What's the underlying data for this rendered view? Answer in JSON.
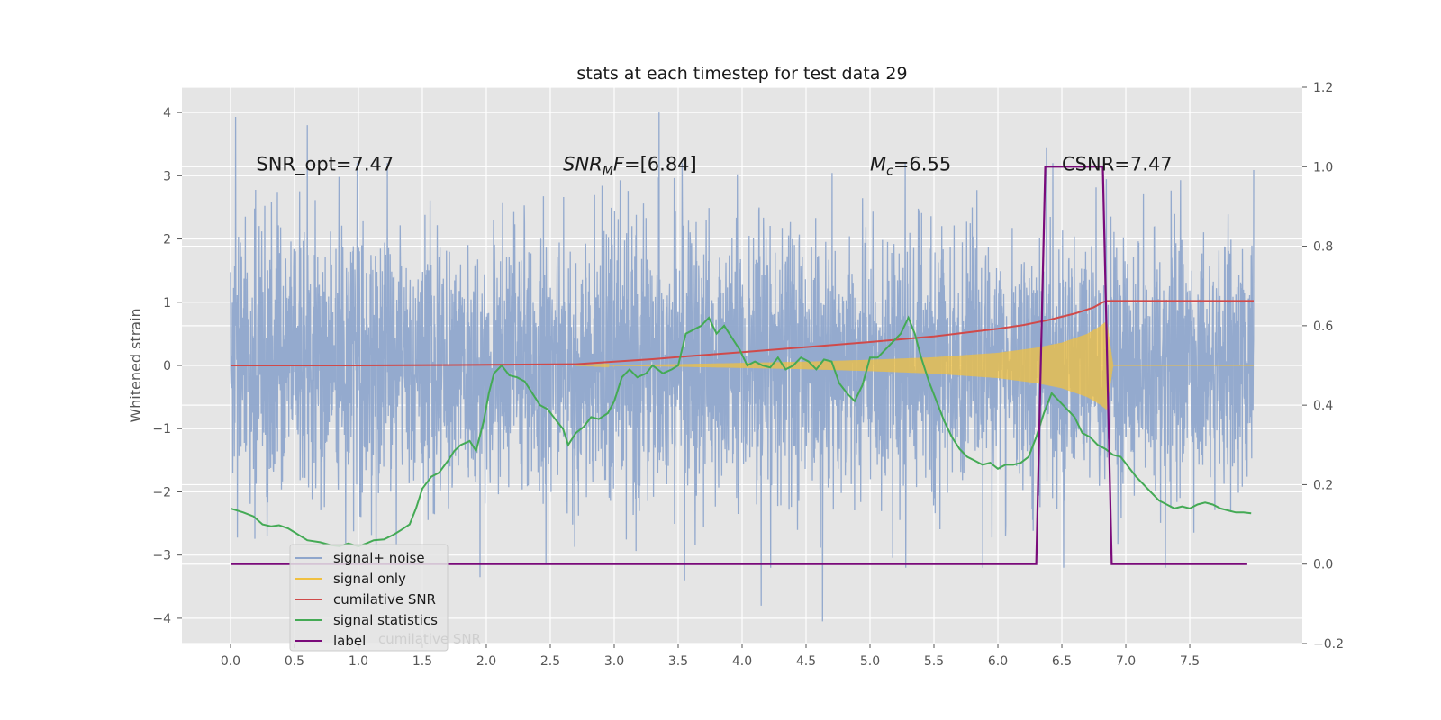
{
  "chart_data": {
    "type": "line",
    "title": "stats at each timestep for test data 29",
    "ylabel": "Whitened strain",
    "xlim": [
      -0.38,
      8.38
    ],
    "ylim": [
      -4.4,
      4.4
    ],
    "y2lim": [
      -0.2,
      1.2
    ],
    "grid": true,
    "legend_placement": "lower-left",
    "x_ticks": [
      0.0,
      0.5,
      1.0,
      1.5,
      2.0,
      2.5,
      3.0,
      3.5,
      4.0,
      4.5,
      5.0,
      5.5,
      6.0,
      6.5,
      7.0,
      7.5
    ],
    "x_tick_labels": [
      "0.0",
      "0.5",
      "1.0",
      "1.5",
      "2.0",
      "2.5",
      "3.0",
      "3.5",
      "4.0",
      "4.5",
      "5.0",
      "5.5",
      "6.0",
      "6.5",
      "7.0",
      "7.5"
    ],
    "y_ticks": [
      -4,
      -3,
      -2,
      -1,
      0,
      1,
      2,
      3,
      4
    ],
    "y_tick_labels": [
      "−4",
      "−3",
      "−2",
      "−1",
      "0",
      "1",
      "2",
      "3",
      "4"
    ],
    "y2_ticks": [
      -0.2,
      0.0,
      0.2,
      0.4,
      0.6,
      0.8,
      1.0,
      1.2
    ],
    "y2_tick_labels": [
      "−0.2",
      "0.0",
      "0.2",
      "0.4",
      "0.6",
      "0.8",
      "1.0",
      "1.2"
    ],
    "annotations": [
      {
        "x": 0.2,
        "y": 3.2,
        "text": "SNR_opt=7.47",
        "italic_prefix": "",
        "subscript": "",
        "suffix": ""
      },
      {
        "x": 2.6,
        "y": 3.2,
        "text": "SNR_MF=[6.84]",
        "italic_prefix": "SNR",
        "subscript": "M",
        "suffix": "F=[6.84]"
      },
      {
        "x": 5.0,
        "y": 3.2,
        "text": "M_c=6.55",
        "italic_prefix": "M",
        "subscript": "c",
        "suffix": "=6.55"
      },
      {
        "x": 6.5,
        "y": 3.2,
        "text": "CSNR=7.47",
        "italic_prefix": "",
        "subscript": "",
        "suffix": ""
      }
    ],
    "legend": [
      {
        "name": "signal+ noise",
        "color": "#8fa6cc"
      },
      {
        "name": "signal only",
        "color": "#f0c040"
      },
      {
        "name": "cumilative SNR",
        "color": "#d04a4a"
      },
      {
        "name": "signal statistics",
        "color": "#44aa55"
      },
      {
        "name": "label",
        "color": "#7a0a7a"
      }
    ],
    "legend_hidden_text": "cumilative SNR",
    "series": [
      {
        "name": "signal+ noise",
        "axis": "left",
        "color": "#8fa6cc",
        "description": "noisy whitened strain, approx. gaussian noise with sigma about 1, t from 0.0 to 8.0",
        "x_range": [
          0.0,
          8.0
        ],
        "noise_sigma": 1.05,
        "peak_values": [
          {
            "x": 0.04,
            "y": 3.93
          },
          {
            "x": 0.6,
            "y": 3.8
          },
          {
            "x": 3.35,
            "y": 4.0
          },
          {
            "x": 4.63,
            "y": -4.05
          },
          {
            "x": 4.15,
            "y": -3.8
          },
          {
            "x": 6.38,
            "y": 3.45
          },
          {
            "x": 3.55,
            "y": -3.4
          },
          {
            "x": 1.95,
            "y": -3.35
          }
        ]
      },
      {
        "name": "signal only",
        "axis": "left",
        "color": "#f0c040",
        "description": "chirp signal, amplitude grows toward merger near t=6.85 then ends",
        "x_range": [
          2.7,
          8.0
        ],
        "envelope": {
          "x": [
            2.7,
            3.5,
            4.0,
            4.5,
            5.0,
            5.5,
            6.0,
            6.3,
            6.5,
            6.7,
            6.8,
            6.85,
            6.9,
            8.0
          ],
          "amp": [
            0.0,
            0.02,
            0.04,
            0.06,
            0.09,
            0.13,
            0.2,
            0.28,
            0.36,
            0.5,
            0.62,
            0.7,
            0.0,
            0.0
          ]
        }
      },
      {
        "name": "cumilative SNR",
        "axis": "left",
        "color": "#d04a4a",
        "x": [
          0.0,
          1.0,
          2.0,
          2.7,
          3.0,
          3.3,
          3.6,
          4.0,
          4.5,
          5.0,
          5.5,
          6.0,
          6.2,
          6.4,
          6.6,
          6.75,
          6.82,
          6.85,
          8.0
        ],
        "values": [
          0.0,
          0.0,
          0.01,
          0.02,
          0.06,
          0.1,
          0.15,
          0.21,
          0.29,
          0.37,
          0.46,
          0.58,
          0.64,
          0.72,
          0.82,
          0.92,
          1.0,
          1.02,
          1.02
        ]
      },
      {
        "name": "signal statistics",
        "axis": "right",
        "color": "#44aa55",
        "x": [
          0.0,
          0.1,
          0.18,
          0.25,
          0.32,
          0.38,
          0.45,
          0.5,
          0.6,
          0.7,
          0.78,
          0.85,
          0.92,
          1.0,
          1.06,
          1.12,
          1.2,
          1.28,
          1.33,
          1.4,
          1.45,
          1.5,
          1.57,
          1.63,
          1.7,
          1.75,
          1.8,
          1.87,
          1.92,
          1.98,
          2.02,
          2.06,
          2.12,
          2.18,
          2.24,
          2.3,
          2.36,
          2.42,
          2.48,
          2.55,
          2.6,
          2.64,
          2.7,
          2.76,
          2.82,
          2.88,
          2.95,
          3.0,
          3.06,
          3.12,
          3.18,
          3.25,
          3.3,
          3.38,
          3.45,
          3.5,
          3.56,
          3.62,
          3.68,
          3.74,
          3.8,
          3.86,
          3.92,
          3.98,
          4.04,
          4.1,
          4.16,
          4.22,
          4.28,
          4.34,
          4.4,
          4.46,
          4.52,
          4.58,
          4.64,
          4.7,
          4.76,
          4.82,
          4.88,
          4.94,
          5.0,
          5.06,
          5.12,
          5.18,
          5.24,
          5.3,
          5.35,
          5.4,
          5.46,
          5.52,
          5.58,
          5.64,
          5.7,
          5.76,
          5.82,
          5.88,
          5.94,
          6.0,
          6.06,
          6.12,
          6.18,
          6.24,
          6.3,
          6.36,
          6.42,
          6.48,
          6.54,
          6.6,
          6.66,
          6.72,
          6.78,
          6.84,
          6.9,
          6.96,
          7.02,
          7.08,
          7.14,
          7.2,
          7.26,
          7.32,
          7.38,
          7.44,
          7.5,
          7.56,
          7.62,
          7.68,
          7.74,
          7.8,
          7.86,
          7.92,
          7.98
        ],
        "values": [
          0.14,
          0.13,
          0.12,
          0.1,
          0.095,
          0.098,
          0.09,
          0.08,
          0.06,
          0.055,
          0.048,
          0.045,
          0.052,
          0.045,
          0.052,
          0.06,
          0.062,
          0.075,
          0.085,
          0.1,
          0.14,
          0.19,
          0.22,
          0.23,
          0.26,
          0.285,
          0.3,
          0.31,
          0.285,
          0.36,
          0.43,
          0.48,
          0.5,
          0.475,
          0.47,
          0.46,
          0.43,
          0.4,
          0.39,
          0.36,
          0.34,
          0.3,
          0.33,
          0.345,
          0.37,
          0.365,
          0.38,
          0.41,
          0.47,
          0.49,
          0.47,
          0.48,
          0.5,
          0.48,
          0.49,
          0.5,
          0.58,
          0.59,
          0.6,
          0.62,
          0.58,
          0.6,
          0.57,
          0.54,
          0.5,
          0.51,
          0.5,
          0.495,
          0.52,
          0.49,
          0.5,
          0.52,
          0.51,
          0.49,
          0.515,
          0.51,
          0.455,
          0.43,
          0.41,
          0.45,
          0.52,
          0.52,
          0.54,
          0.56,
          0.58,
          0.62,
          0.58,
          0.52,
          0.46,
          0.41,
          0.36,
          0.32,
          0.29,
          0.27,
          0.26,
          0.25,
          0.255,
          0.24,
          0.25,
          0.25,
          0.255,
          0.27,
          0.32,
          0.38,
          0.43,
          0.41,
          0.39,
          0.37,
          0.33,
          0.32,
          0.3,
          0.29,
          0.275,
          0.27,
          0.245,
          0.22,
          0.2,
          0.18,
          0.16,
          0.15,
          0.14,
          0.145,
          0.14,
          0.15,
          0.155,
          0.15,
          0.14,
          0.135,
          0.13,
          0.13,
          0.128
        ]
      },
      {
        "name": "label",
        "axis": "right",
        "color": "#7a0a7a",
        "x": [
          0.0,
          6.3,
          6.37,
          6.82,
          6.89,
          7.95
        ],
        "values": [
          0.0,
          0.0,
          1.0,
          1.0,
          0.0,
          0.0
        ]
      }
    ]
  }
}
